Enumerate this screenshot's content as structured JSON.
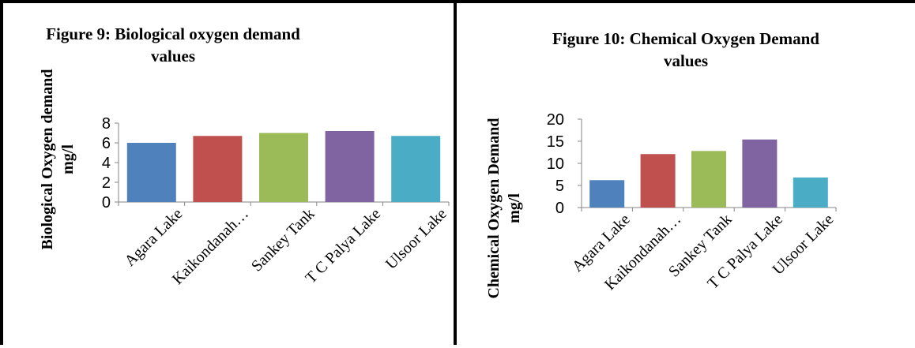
{
  "chart_data": [
    {
      "type": "bar",
      "title": "Figure 9: Biological oxygen demand values",
      "title_lines": [
        "Figure 9: Biological oxygen demand",
        "values"
      ],
      "xlabel": "",
      "ylabel": "Biological Oxygen demand mg/l",
      "ylabel_lines": [
        "Biological Oxygen demand",
        "mg/l"
      ],
      "categories": [
        "Agara Lake",
        "Kaikondanah…",
        "Sankey Tank",
        "T C Palya Lake",
        "Ulsoor Lake"
      ],
      "values": [
        6.0,
        6.7,
        7.0,
        7.2,
        6.7
      ],
      "colors": [
        "#4f81bd",
        "#c0504d",
        "#9bbb59",
        "#8064a2",
        "#4bacc6"
      ],
      "ylim": [
        0,
        8
      ],
      "yticks": [
        "0",
        "2",
        "4",
        "6",
        "8"
      ],
      "grid": false,
      "legend": "none"
    },
    {
      "type": "bar",
      "title": "Figure 10: Chemical Oxygen Demand values",
      "title_lines": [
        "Figure 10: Chemical Oxygen Demand",
        "values"
      ],
      "xlabel": "",
      "ylabel": "Chemical Oxygen Demand mg/l",
      "ylabel_lines": [
        "Chemical Oxygen Demand",
        "mg/l"
      ],
      "categories": [
        "Agara Lake",
        "Kaikondanah…",
        "Sankey Tank",
        "T C Palya Lake",
        "Ulsoor Lake"
      ],
      "values": [
        6.2,
        12.1,
        12.8,
        15.4,
        6.8
      ],
      "colors": [
        "#4f81bd",
        "#c0504d",
        "#9bbb59",
        "#8064a2",
        "#4bacc6"
      ],
      "ylim": [
        0,
        20
      ],
      "yticks": [
        "0",
        "5",
        "10",
        "15",
        "20"
      ],
      "grid": false,
      "legend": "none"
    }
  ]
}
